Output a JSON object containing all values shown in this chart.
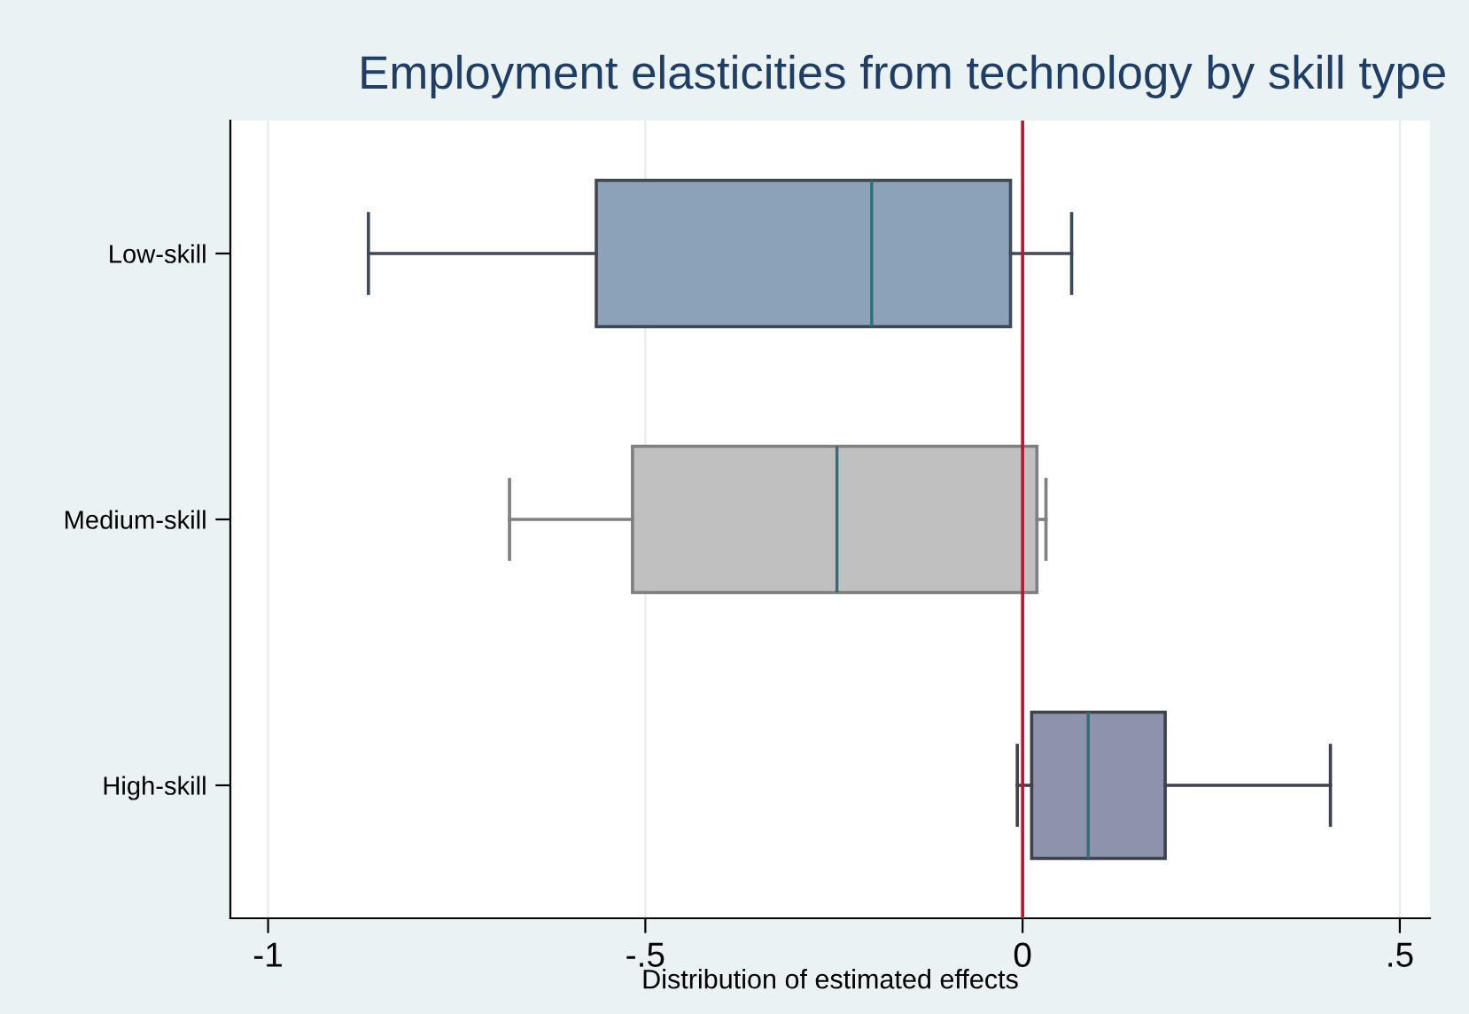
{
  "chart_data": {
    "type": "box",
    "title": "Employment elasticities from technology by skill type",
    "xlabel": "Distribution of estimated effects",
    "orientation": "horizontal",
    "categories": [
      "Low-skill",
      "Medium-skill",
      "High-skill"
    ],
    "colors": [
      "#8ca2b8",
      "#c0c0c0",
      "#8c93aa"
    ],
    "boxes": [
      {
        "low": -0.867,
        "q1": -0.565,
        "median": -0.2,
        "q3": -0.016,
        "high": 0.065
      },
      {
        "low": -0.68,
        "q1": -0.517,
        "median": -0.246,
        "q3": 0.019,
        "high": 0.031
      },
      {
        "low": -0.007,
        "q1": 0.012,
        "median": 0.087,
        "q3": 0.189,
        "high": 0.408
      }
    ],
    "xlim": [
      -1.05,
      0.54
    ],
    "xticks": [
      -1,
      {
        "value": -0.5,
        "label": "-.5"
      },
      0,
      {
        "value": 0.5,
        "label": ".5"
      }
    ],
    "ref_lines": [
      {
        "axis": "x",
        "value": 0,
        "label": null,
        "color": "#c8102e"
      }
    ],
    "grid": "x",
    "legend": false
  }
}
